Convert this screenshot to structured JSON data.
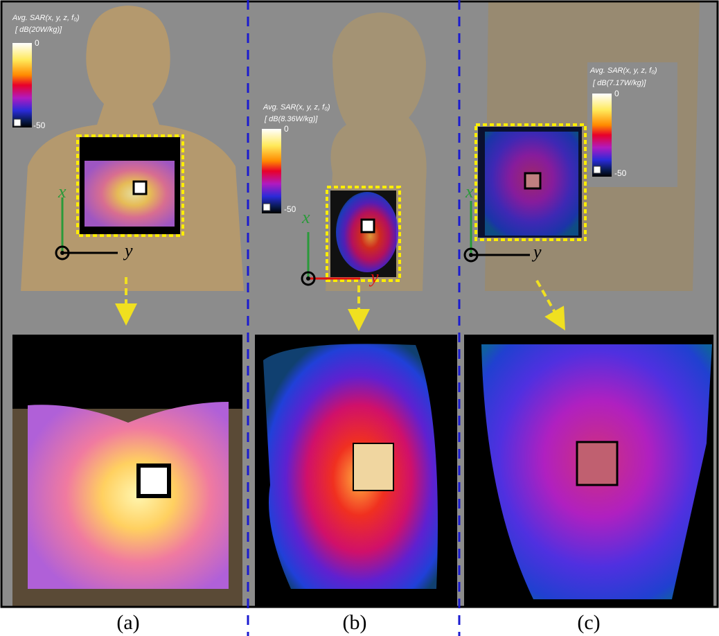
{
  "panels": [
    {
      "colorbar": {
        "title": "Avg. SAR(x, y, z, f₀)",
        "unit": "[ dB(20W/kg)]",
        "max": "0",
        "min": "-50"
      },
      "axes": {
        "x": "x",
        "y": "y"
      },
      "caption": "(a)"
    },
    {
      "colorbar": {
        "title": "Avg. SAR(x, y, z, f₀)",
        "unit": "[ dB(8.36W/kg)]",
        "max": "0",
        "min": "-50"
      },
      "axes": {
        "x": "x",
        "y": "y"
      },
      "caption": "(b)"
    },
    {
      "colorbar": {
        "title": "Avg. SAR(x, y, z, f₀)",
        "unit": "[ dB(7.17W/kg)]",
        "max": "0",
        "min": "-50"
      },
      "axes": {
        "x": "x",
        "y": "y"
      },
      "caption": "(c)"
    }
  ]
}
